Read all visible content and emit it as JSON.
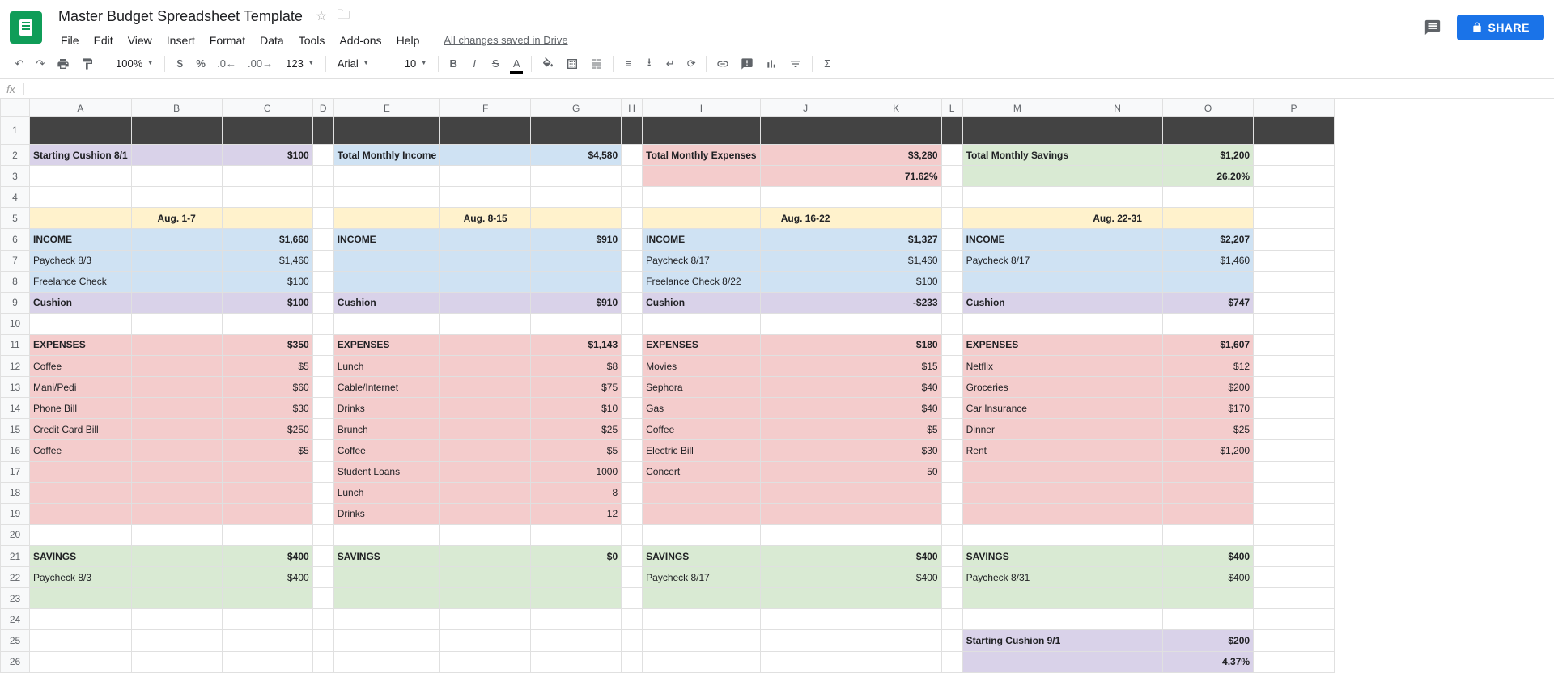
{
  "doc": {
    "title": "Master Budget Spreadsheet Template",
    "save_status": "All changes saved in Drive"
  },
  "menu": [
    "File",
    "Edit",
    "View",
    "Insert",
    "Format",
    "Data",
    "Tools",
    "Add-ons",
    "Help"
  ],
  "share": "SHARE",
  "toolbar": {
    "zoom": "100%",
    "numfmt": "123",
    "font": "Arial",
    "size": "10"
  },
  "colors": {
    "purple": "#d9d2e9",
    "blue": "#cfe2f3",
    "pink": "#f4cccc",
    "green": "#d9ead3",
    "yellow": "#fff2cc",
    "dark": "#434343"
  },
  "columns": [
    "A",
    "B",
    "C",
    "D",
    "E",
    "F",
    "G",
    "H",
    "I",
    "J",
    "K",
    "L",
    "M",
    "N",
    "O",
    "P"
  ],
  "rowcount": 26,
  "summary": {
    "start_cushion_label": "Starting Cushion 8/1",
    "start_cushion_val": "$100",
    "income_label": "Total Monthly Income",
    "income_val": "$4,580",
    "expense_label": "Total Monthly Expenses",
    "expense_val": "$3,280",
    "expense_pct": "71.62%",
    "savings_label": "Total Monthly Savings",
    "savings_val": "$1,200",
    "savings_pct": "26.20%"
  },
  "weeks": [
    {
      "header": "Aug. 1-7",
      "income_label": "INCOME",
      "income_total": "$1,660",
      "income_rows": [
        [
          "Paycheck 8/3",
          "$1,460"
        ],
        [
          "Freelance Check",
          "$100"
        ]
      ],
      "cushion_label": "Cushion",
      "cushion_val": "$100",
      "expense_label": "EXPENSES",
      "expense_total": "$350",
      "expense_rows": [
        [
          "Coffee",
          "$5"
        ],
        [
          "Mani/Pedi",
          "$60"
        ],
        [
          "Phone Bill",
          "$30"
        ],
        [
          "Credit Card Bill",
          "$250"
        ],
        [
          "Coffee",
          "$5"
        ],
        [
          "",
          ""
        ],
        [
          "",
          ""
        ],
        [
          "",
          ""
        ]
      ],
      "savings_label": "SAVINGS",
      "savings_total": "$400",
      "savings_rows": [
        [
          "Paycheck 8/3",
          "$400"
        ],
        [
          "",
          ""
        ]
      ]
    },
    {
      "header": "Aug. 8-15",
      "income_label": "INCOME",
      "income_total": "$910",
      "income_rows": [
        [
          "",
          ""
        ],
        [
          "",
          ""
        ]
      ],
      "cushion_label": "Cushion",
      "cushion_val": "$910",
      "expense_label": "EXPENSES",
      "expense_total": "$1,143",
      "expense_rows": [
        [
          "Lunch",
          "$8"
        ],
        [
          "Cable/Internet",
          "$75"
        ],
        [
          "Drinks",
          "$10"
        ],
        [
          "Brunch",
          "$25"
        ],
        [
          "Coffee",
          "$5"
        ],
        [
          "Student Loans",
          "1000"
        ],
        [
          "Lunch",
          "8"
        ],
        [
          "Drinks",
          "12"
        ]
      ],
      "savings_label": "SAVINGS",
      "savings_total": "$0",
      "savings_rows": [
        [
          "",
          ""
        ],
        [
          "",
          ""
        ]
      ]
    },
    {
      "header": "Aug. 16-22",
      "income_label": "INCOME",
      "income_total": "$1,327",
      "income_rows": [
        [
          "Paycheck 8/17",
          "$1,460"
        ],
        [
          "Freelance Check 8/22",
          "$100"
        ]
      ],
      "cushion_label": "Cushion",
      "cushion_val": "-$233",
      "expense_label": "EXPENSES",
      "expense_total": "$180",
      "expense_rows": [
        [
          "Movies",
          "$15"
        ],
        [
          "Sephora",
          "$40"
        ],
        [
          "Gas",
          "$40"
        ],
        [
          "Coffee",
          "$5"
        ],
        [
          "Electric Bill",
          "$30"
        ],
        [
          "Concert",
          "50"
        ],
        [
          "",
          ""
        ],
        [
          "",
          ""
        ]
      ],
      "savings_label": "SAVINGS",
      "savings_total": "$400",
      "savings_rows": [
        [
          "Paycheck 8/17",
          "$400"
        ],
        [
          "",
          ""
        ]
      ]
    },
    {
      "header": "Aug. 22-31",
      "income_label": "INCOME",
      "income_total": "$2,207",
      "income_rows": [
        [
          "Paycheck 8/17",
          "$1,460"
        ],
        [
          "",
          ""
        ]
      ],
      "cushion_label": "Cushion",
      "cushion_val": "$747",
      "expense_label": "EXPENSES",
      "expense_total": "$1,607",
      "expense_rows": [
        [
          "Netflix",
          "$12"
        ],
        [
          "Groceries",
          "$200"
        ],
        [
          "Car Insurance",
          "$170"
        ],
        [
          "Dinner",
          "$25"
        ],
        [
          "Rent",
          "$1,200"
        ],
        [
          "",
          ""
        ],
        [
          "",
          ""
        ],
        [
          "",
          ""
        ]
      ],
      "savings_label": "SAVINGS",
      "savings_total": "$400",
      "savings_rows": [
        [
          "Paycheck 8/31",
          "$400"
        ],
        [
          "",
          ""
        ]
      ]
    }
  ],
  "end": {
    "label": "Starting Cushion 9/1",
    "val": "$200",
    "pct": "4.37%"
  }
}
